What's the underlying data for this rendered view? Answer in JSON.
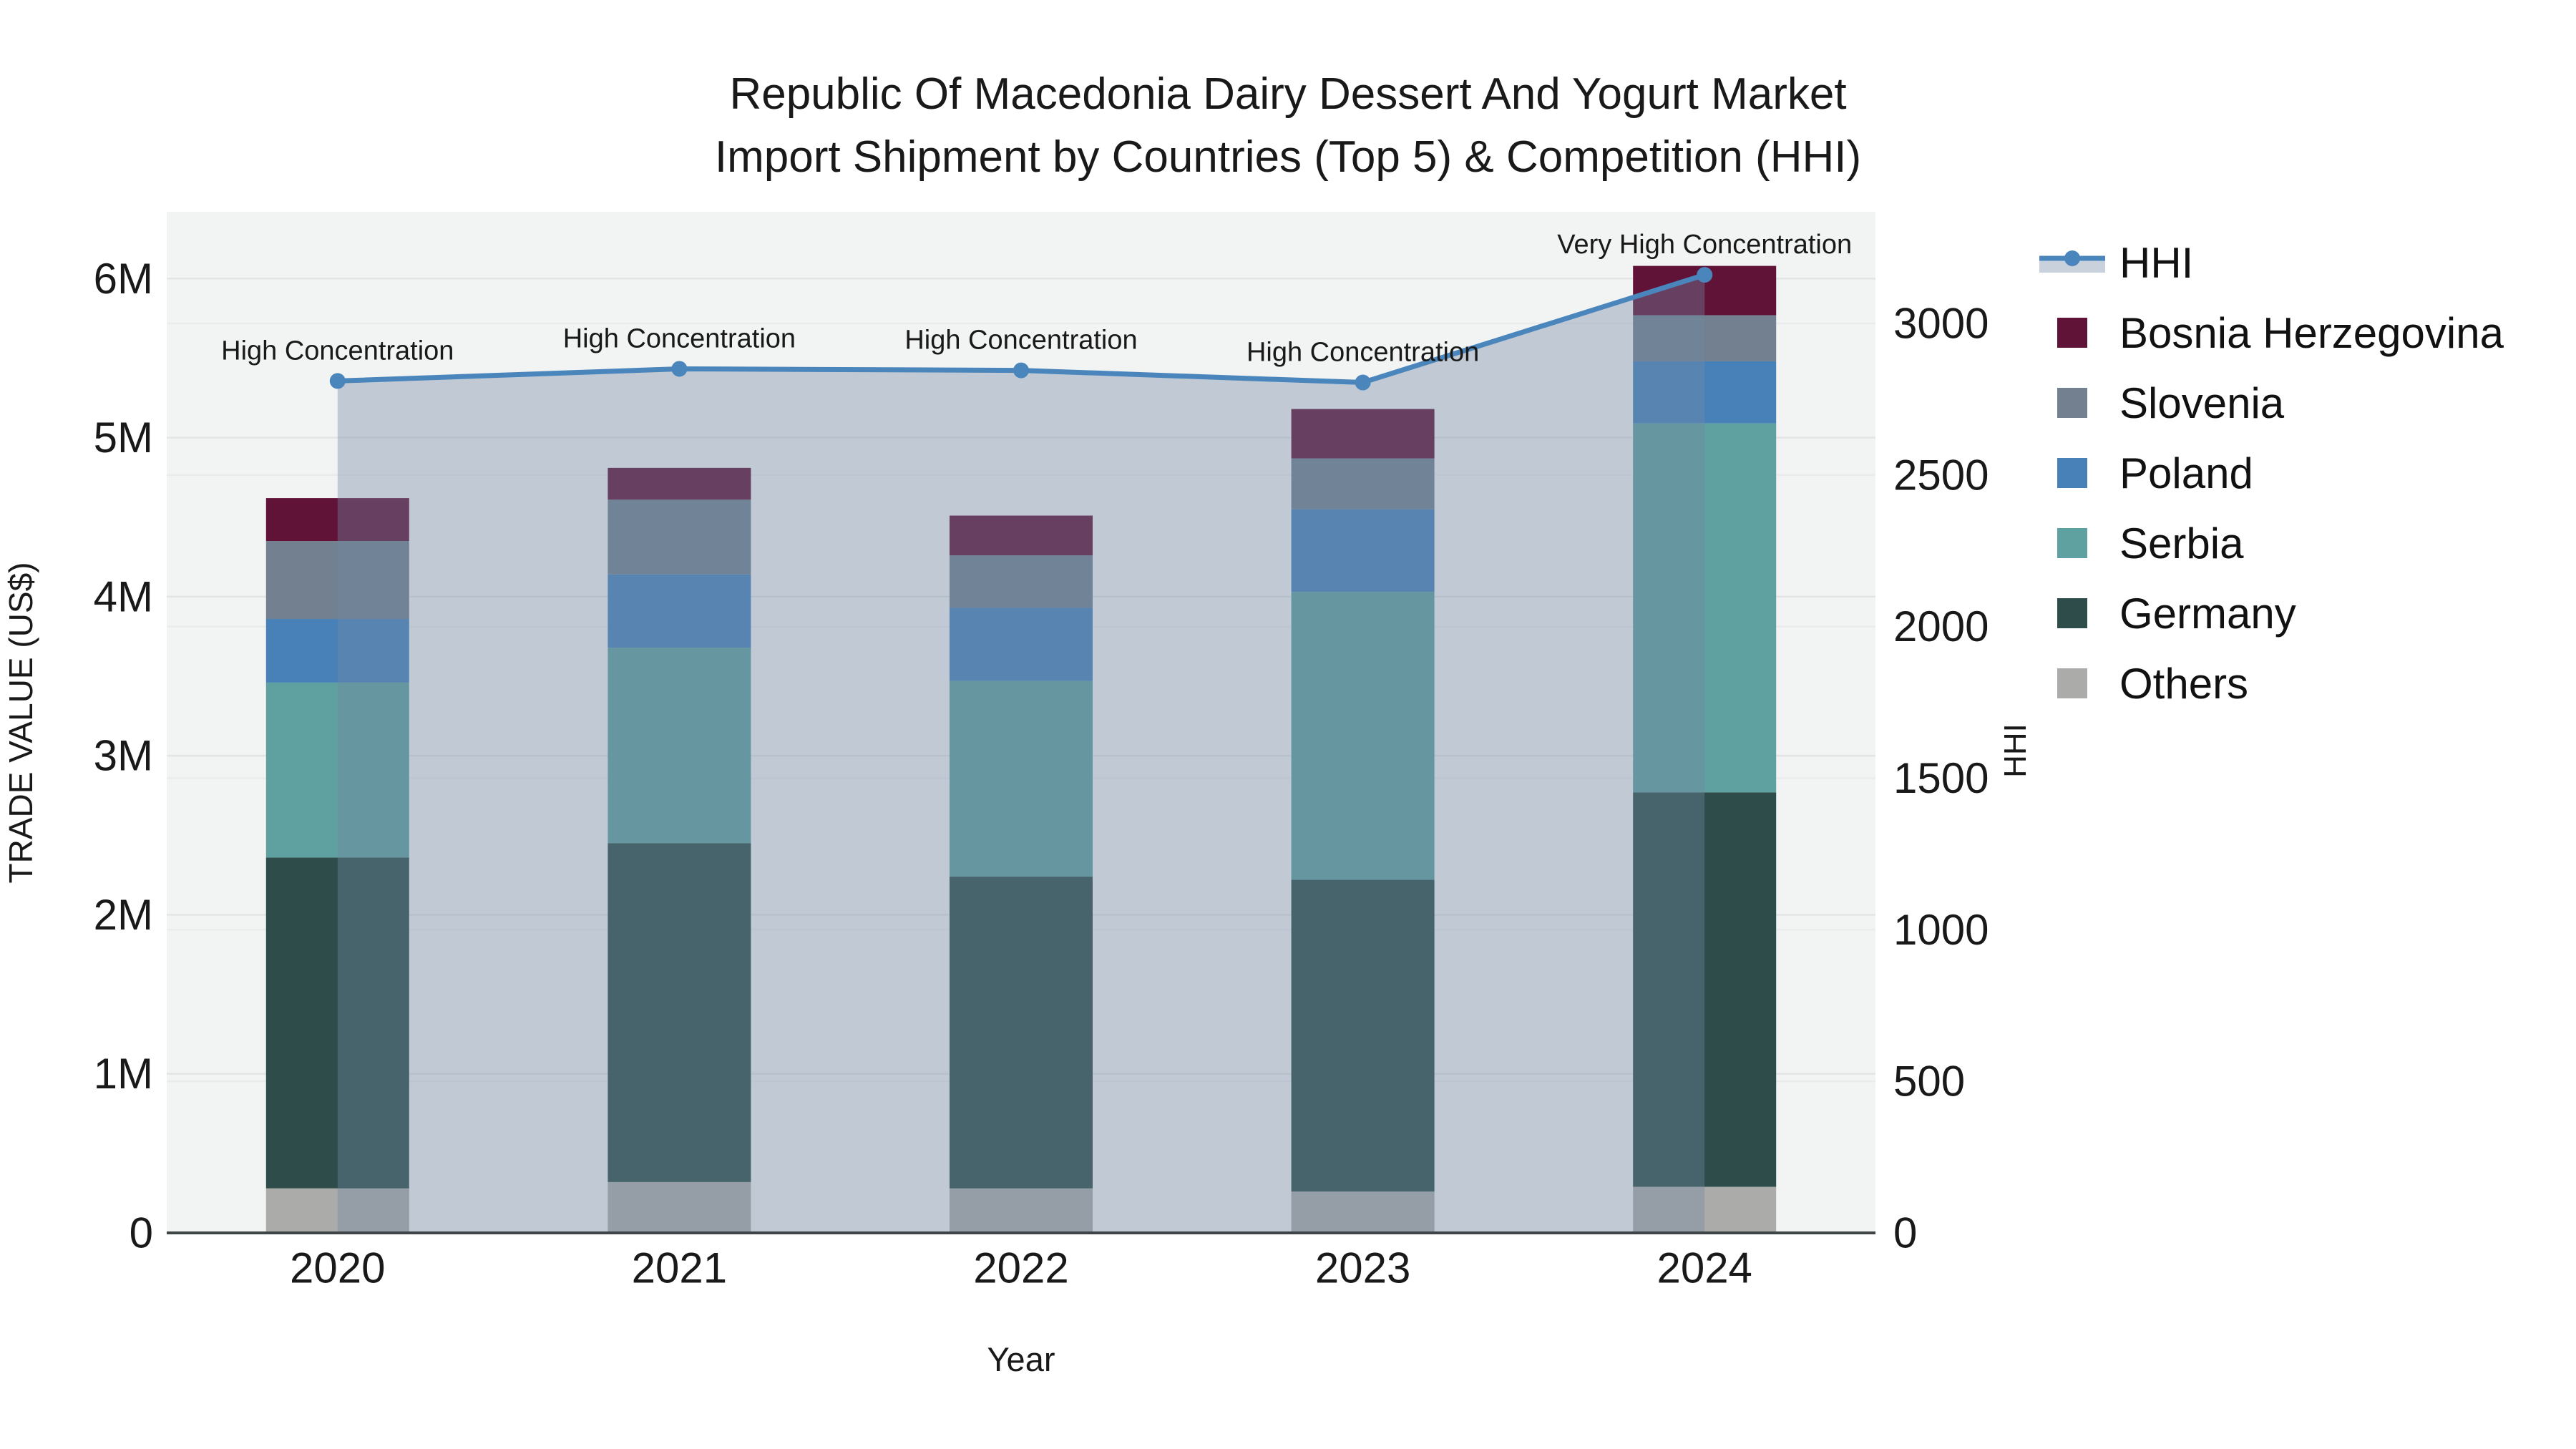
{
  "title": {
    "line1": "Republic Of Macedonia Dairy Dessert And Yogurt Market",
    "line2": "Import Shipment by Countries (Top 5) & Competition (HHI)"
  },
  "chart_data": {
    "type": "bar+line",
    "title": "Republic Of Macedonia Dairy Dessert And Yogurt Market Import Shipment by Countries (Top 5) & Competition (HHI)",
    "categories": [
      "2020",
      "2021",
      "2022",
      "2023",
      "2024"
    ],
    "x_axis": {
      "title": "Year"
    },
    "y_left": {
      "title": "TRADE VALUE (US$)",
      "unit": "US$ millions",
      "tick_values": [
        0,
        1,
        2,
        3,
        4,
        5,
        6
      ],
      "tick_labels": [
        "0",
        "1M",
        "2M",
        "3M",
        "4M",
        "5M",
        "6M"
      ],
      "range": [
        0,
        6.42
      ],
      "grid": true
    },
    "y_right": {
      "title": "HHI",
      "tick_values": [
        0,
        500,
        1000,
        1500,
        2000,
        2500,
        3000
      ],
      "tick_labels": [
        "0",
        "500",
        "1000",
        "1500",
        "2000",
        "2500",
        "3000"
      ],
      "range": [
        0,
        3368
      ],
      "grid": true
    },
    "series": [
      {
        "name": "Others",
        "color": "#ABABA9",
        "values_musd": [
          0.28,
          0.32,
          0.28,
          0.26,
          0.29
        ]
      },
      {
        "name": "Germany",
        "color": "#2E4C49",
        "values_musd": [
          2.08,
          2.13,
          1.96,
          1.96,
          2.48
        ]
      },
      {
        "name": "Serbia",
        "color": "#5FA0A0",
        "values_musd": [
          1.1,
          1.23,
          1.23,
          1.81,
          2.32
        ]
      },
      {
        "name": "Poland",
        "color": "#4781B8",
        "values_musd": [
          0.4,
          0.46,
          0.46,
          0.52,
          0.39
        ]
      },
      {
        "name": "Slovenia",
        "color": "#72808F",
        "values_musd": [
          0.49,
          0.47,
          0.33,
          0.32,
          0.29
        ]
      },
      {
        "name": "Bosnia Herzegovina",
        "color": "#611337",
        "values_musd": [
          0.27,
          0.2,
          0.25,
          0.31,
          0.31
        ]
      }
    ],
    "bar_totals_musd": [
      4.62,
      4.81,
      4.51,
      5.18,
      6.08
    ],
    "hhi": {
      "name": "HHI",
      "values": [
        2810,
        2850,
        2845,
        2805,
        3160
      ],
      "line_color": "#4A86BC",
      "area_color": "rgba(113,136,163,0.38)"
    },
    "annotations": [
      {
        "category": "2020",
        "text": "High Concentration"
      },
      {
        "category": "2021",
        "text": "High Concentration"
      },
      {
        "category": "2022",
        "text": "High Concentration"
      },
      {
        "category": "2023",
        "text": "High Concentration"
      },
      {
        "category": "2024",
        "text": "Very High Concentration"
      }
    ],
    "legend_order": [
      "HHI",
      "Bosnia Herzegovina",
      "Slovenia",
      "Poland",
      "Serbia",
      "Germany",
      "Others"
    ],
    "layout_hints": {
      "plot_bg": "#F2F3F3",
      "grid_color": "#E2E4E6",
      "grid_color_right": "#EAEBED",
      "axis_line_color": "#3F4447",
      "text_color": "#191919",
      "legend_position": "right",
      "bar_stack_order_bottom_to_top": [
        "Others",
        "Germany",
        "Serbia",
        "Poland",
        "Slovenia",
        "Bosnia Herzegovina"
      ]
    }
  }
}
